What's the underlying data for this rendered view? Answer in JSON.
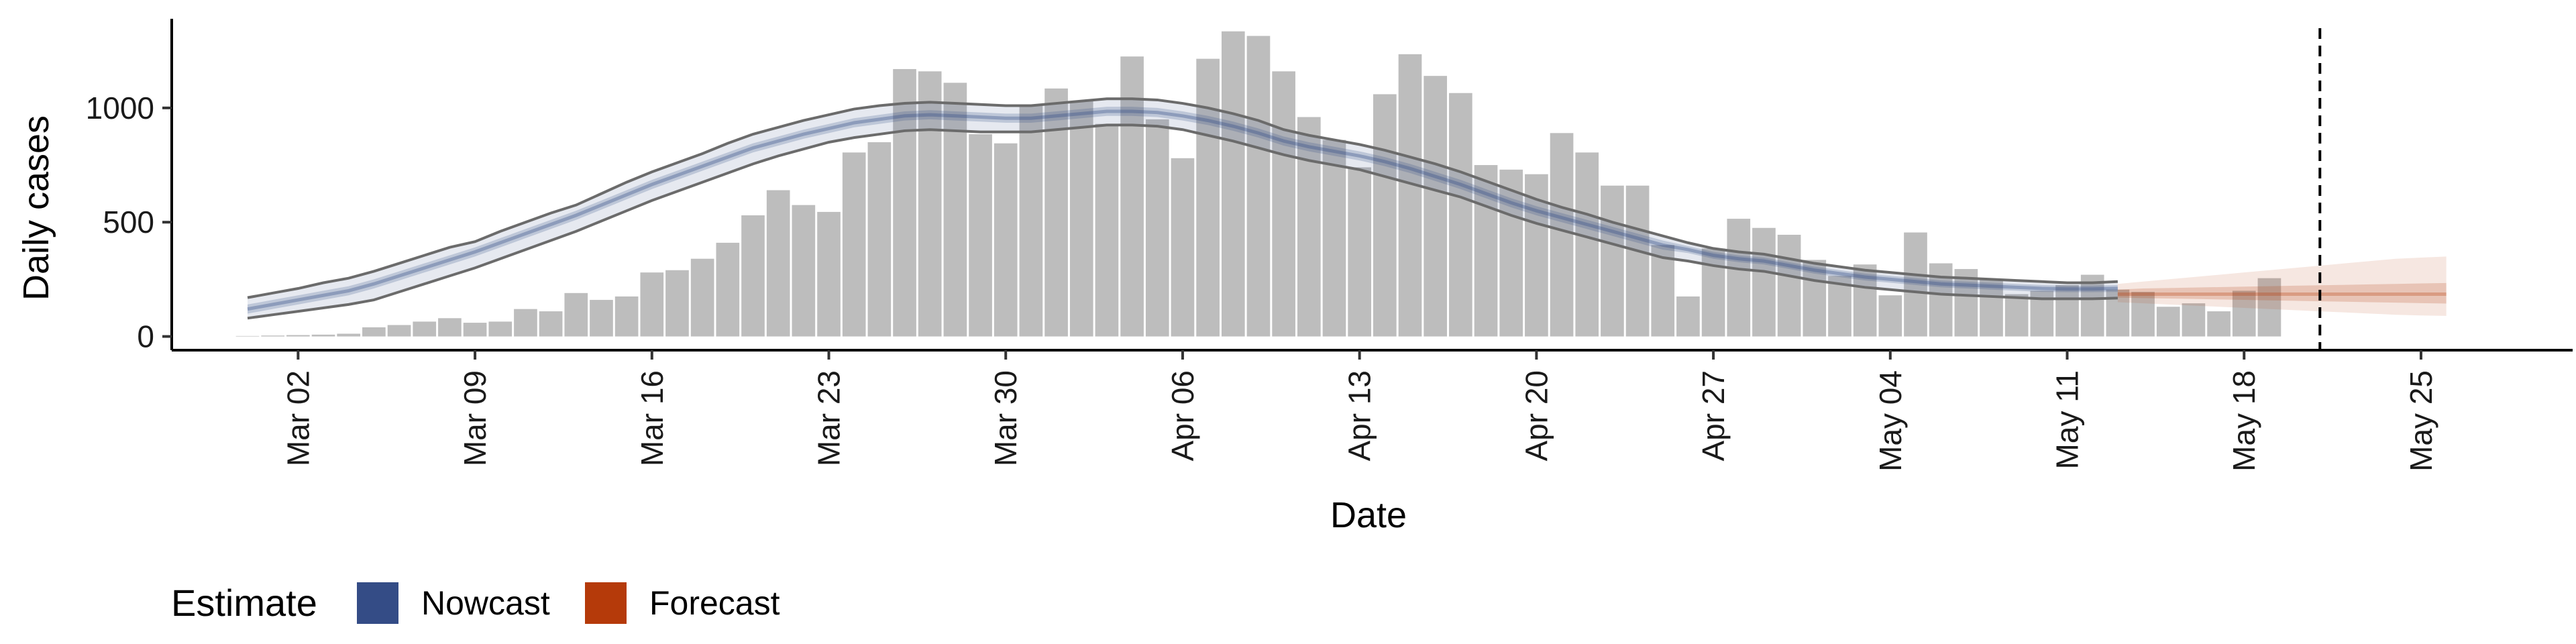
{
  "chart_data": {
    "type": "bar",
    "title": "",
    "xlabel": "Date",
    "ylabel": "Daily cases",
    "x_start_date": "2020-02-29",
    "ylim": [
      -60,
      1390
    ],
    "xlim": [
      "2020-02-26",
      "2020-05-31"
    ],
    "y_ticks": [
      0,
      500,
      1000
    ],
    "x_ticks": [
      {
        "date": "2020-03-02",
        "label": "Mar 02"
      },
      {
        "date": "2020-03-09",
        "label": "Mar 09"
      },
      {
        "date": "2020-03-16",
        "label": "Mar 16"
      },
      {
        "date": "2020-03-23",
        "label": "Mar 23"
      },
      {
        "date": "2020-03-30",
        "label": "Mar 30"
      },
      {
        "date": "2020-04-06",
        "label": "Apr 06"
      },
      {
        "date": "2020-04-13",
        "label": "Apr 13"
      },
      {
        "date": "2020-04-20",
        "label": "Apr 20"
      },
      {
        "date": "2020-04-27",
        "label": "Apr 27"
      },
      {
        "date": "2020-05-04",
        "label": "May 04"
      },
      {
        "date": "2020-05-11",
        "label": "May 11"
      },
      {
        "date": "2020-05-18",
        "label": "May 18"
      },
      {
        "date": "2020-05-25",
        "label": "May 25"
      }
    ],
    "bars": [
      2,
      4,
      6,
      8,
      12,
      40,
      50,
      65,
      80,
      60,
      65,
      120,
      110,
      190,
      160,
      175,
      280,
      290,
      340,
      410,
      530,
      640,
      575,
      545,
      805,
      850,
      1170,
      1160,
      1110,
      885,
      845,
      1010,
      1085,
      1030,
      930,
      1225,
      950,
      780,
      1215,
      1335,
      1315,
      1160,
      960,
      860,
      740,
      1060,
      1235,
      1140,
      1065,
      750,
      730,
      710,
      890,
      805,
      660,
      660,
      400,
      175,
      385,
      515,
      475,
      445,
      335,
      265,
      315,
      180,
      455,
      320,
      295,
      250,
      185,
      200,
      225,
      270,
      205,
      195,
      130,
      145,
      110,
      200,
      255
    ],
    "nowcast": {
      "start_index": 0,
      "outer_upper": [
        170,
        190,
        210,
        235,
        255,
        285,
        320,
        355,
        390,
        415,
        460,
        500,
        540,
        575,
        625,
        675,
        720,
        760,
        800,
        845,
        885,
        915,
        945,
        970,
        995,
        1010,
        1020,
        1025,
        1020,
        1015,
        1010,
        1010,
        1020,
        1030,
        1040,
        1040,
        1035,
        1020,
        1000,
        975,
        945,
        905,
        880,
        860,
        840,
        815,
        785,
        755,
        720,
        680,
        640,
        600,
        565,
        535,
        500,
        470,
        440,
        410,
        385,
        370,
        360,
        340,
        320,
        305,
        290,
        280,
        270,
        260,
        255,
        250,
        245,
        240,
        235,
        235,
        240
      ],
      "inner_upper": [
        140,
        160,
        180,
        200,
        220,
        250,
        285,
        320,
        355,
        390,
        430,
        470,
        510,
        550,
        595,
        640,
        685,
        725,
        765,
        805,
        845,
        875,
        905,
        930,
        955,
        970,
        985,
        990,
        985,
        980,
        975,
        975,
        985,
        995,
        1005,
        1005,
        1000,
        985,
        965,
        940,
        910,
        875,
        850,
        830,
        810,
        785,
        755,
        720,
        685,
        645,
        605,
        570,
        540,
        510,
        480,
        450,
        420,
        395,
        370,
        355,
        345,
        325,
        305,
        290,
        275,
        265,
        255,
        245,
        240,
        235,
        230,
        225,
        222,
        222,
        225
      ],
      "median": [
        120,
        140,
        160,
        180,
        200,
        230,
        265,
        300,
        335,
        370,
        410,
        450,
        490,
        530,
        575,
        620,
        665,
        705,
        745,
        785,
        825,
        855,
        885,
        910,
        935,
        950,
        965,
        970,
        965,
        960,
        955,
        955,
        965,
        975,
        985,
        985,
        980,
        965,
        945,
        920,
        890,
        855,
        830,
        810,
        790,
        765,
        735,
        700,
        665,
        625,
        585,
        550,
        520,
        490,
        460,
        430,
        400,
        380,
        355,
        340,
        330,
        310,
        290,
        275,
        260,
        250,
        240,
        230,
        225,
        220,
        215,
        210,
        208,
        208,
        210
      ],
      "inner_lower": [
        100,
        120,
        140,
        160,
        180,
        210,
        245,
        280,
        315,
        350,
        390,
        430,
        470,
        510,
        555,
        600,
        645,
        685,
        725,
        765,
        805,
        835,
        865,
        890,
        915,
        930,
        945,
        950,
        945,
        940,
        935,
        935,
        945,
        955,
        965,
        965,
        960,
        945,
        925,
        900,
        870,
        835,
        810,
        790,
        770,
        745,
        715,
        680,
        645,
        605,
        565,
        530,
        500,
        470,
        440,
        410,
        380,
        365,
        340,
        325,
        315,
        295,
        275,
        260,
        245,
        235,
        225,
        215,
        210,
        205,
        200,
        195,
        194,
        194,
        195
      ],
      "outer_lower": [
        80,
        95,
        110,
        125,
        140,
        160,
        195,
        230,
        265,
        300,
        340,
        380,
        420,
        460,
        505,
        550,
        595,
        635,
        675,
        715,
        755,
        790,
        820,
        850,
        870,
        885,
        900,
        905,
        900,
        895,
        895,
        895,
        905,
        915,
        925,
        925,
        920,
        905,
        880,
        855,
        825,
        795,
        770,
        750,
        730,
        700,
        670,
        640,
        610,
        570,
        530,
        495,
        465,
        435,
        405,
        375,
        345,
        330,
        310,
        295,
        285,
        265,
        245,
        230,
        215,
        205,
        195,
        185,
        180,
        175,
        170,
        165,
        165,
        165,
        168
      ]
    },
    "forecast": {
      "start_index": 74,
      "outer_upper": [
        230,
        240,
        250,
        260,
        270,
        280,
        290,
        300,
        310,
        320,
        330,
        340,
        345,
        350
      ],
      "inner_upper": [
        205,
        210,
        212,
        214,
        216,
        218,
        220,
        222,
        224,
        226,
        228,
        230,
        232,
        234
      ],
      "median": [
        185,
        185,
        185,
        185,
        185,
        185,
        185,
        185,
        185,
        185,
        185,
        185,
        185,
        185
      ],
      "inner_lower": [
        170,
        168,
        166,
        164,
        162,
        160,
        158,
        156,
        154,
        152,
        150,
        148,
        146,
        144
      ],
      "outer_lower": [
        150,
        145,
        140,
        135,
        130,
        125,
        120,
        115,
        110,
        105,
        100,
        95,
        92,
        90
      ]
    },
    "vline_date": "2020-05-21",
    "legend": {
      "title": "Estimate",
      "position": "bottom-left",
      "items": [
        {
          "label": "Nowcast",
          "color": "#344c86"
        },
        {
          "label": "Forecast",
          "color": "#b53a0a"
        }
      ]
    },
    "colors": {
      "bars": "#bdbdbd",
      "nowcast_band": "#344c86",
      "forecast_band": "#b53a0a",
      "ribbon_line": "#6b6b6b",
      "vline": "#000000"
    },
    "grid": false
  }
}
